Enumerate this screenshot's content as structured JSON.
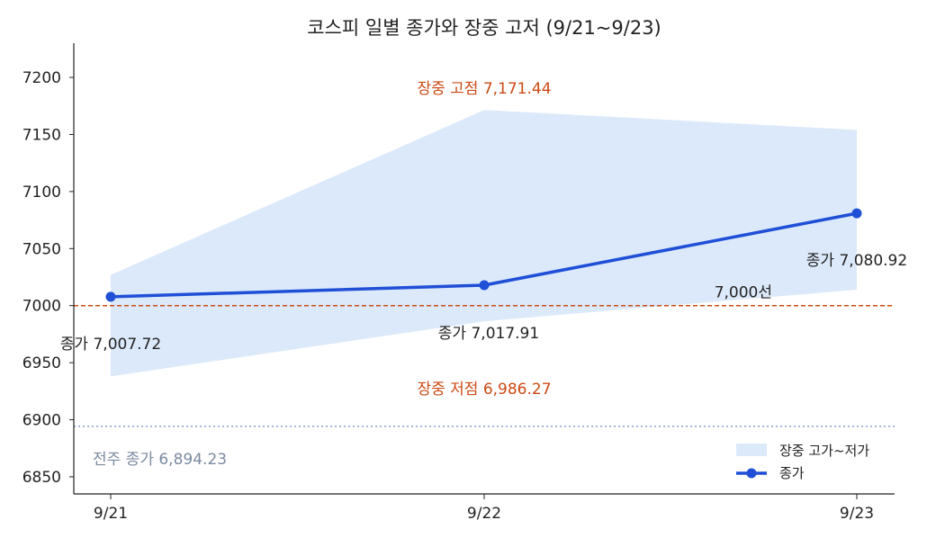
{
  "chart_data": {
    "type": "line",
    "title": "코스피 일별 종가와 장중 고저 (9/21~9/23)",
    "xlabel": "",
    "ylabel": "",
    "categories": [
      "9/21",
      "9/22",
      "9/23"
    ],
    "ylim": [
      6835,
      7230
    ],
    "yticks": [
      6850,
      6900,
      6950,
      7000,
      7050,
      7100,
      7150,
      7200
    ],
    "grid": false,
    "legend_position": "bottom-right",
    "series": [
      {
        "name": "종가",
        "kind": "line",
        "values": [
          7007.72,
          7017.91,
          7080.92
        ],
        "color": "#1f4fd6"
      },
      {
        "name": "장중 고가~저가",
        "kind": "band",
        "high": [
          7027,
          7171.44,
          7154
        ],
        "low": [
          6938,
          6986.27,
          7014
        ],
        "color": "#dce9fb"
      }
    ],
    "point_labels": [
      "종가 7,007.72",
      "종가 7,017.91",
      "종가 7,080.92"
    ],
    "reference_lines": [
      {
        "value": 7000,
        "label": "7,000선",
        "color": "#cc4a14",
        "style": "dashed"
      },
      {
        "value": 6894.23,
        "label": "전주 종가 6,894.23",
        "color": "#8a9cc8",
        "style": "dotted"
      }
    ],
    "annotations": [
      {
        "text": "장중 고점 7,171.44",
        "color": "#cc4a14"
      },
      {
        "text": "장중 저점 6,986.27",
        "color": "#cc4a14"
      }
    ]
  }
}
